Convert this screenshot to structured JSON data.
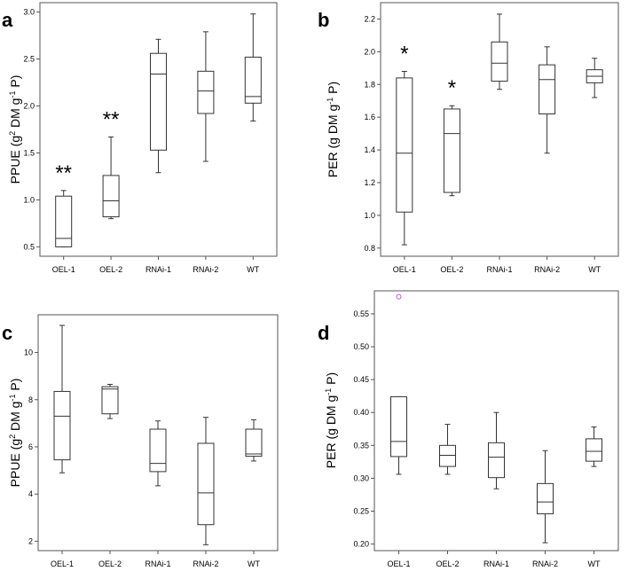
{
  "chart_data": [
    {
      "panel": "a",
      "type": "box",
      "ylabel_main": "PPUE (g",
      "ylabel_sup1": "2",
      "ylabel_mid": " DM g",
      "ylabel_sup2": "-1",
      "ylabel_end": " P)",
      "ylim": [
        0.4,
        3.1
      ],
      "yticks": [
        "0.5",
        "1.0",
        "1.5",
        "2.0",
        "2.5",
        "3.0"
      ],
      "categories": [
        "OEL-1",
        "OEL-2",
        "RNAi-1",
        "RNAi-2",
        "WT"
      ],
      "boxes": [
        {
          "min": 0.5,
          "q1": 0.5,
          "median": 0.59,
          "q3": 1.04,
          "max": 1.1,
          "sig": "**"
        },
        {
          "min": 0.8,
          "q1": 0.82,
          "median": 0.99,
          "q3": 1.26,
          "max": 1.67,
          "sig": "**"
        },
        {
          "min": 1.29,
          "q1": 1.53,
          "median": 2.34,
          "q3": 2.56,
          "max": 2.71,
          "sig": ""
        },
        {
          "min": 1.41,
          "q1": 1.92,
          "median": 2.16,
          "q3": 2.37,
          "max": 2.79,
          "sig": ""
        },
        {
          "min": 1.84,
          "q1": 2.03,
          "median": 2.1,
          "q3": 2.52,
          "max": 2.98,
          "sig": ""
        }
      ],
      "outliers": []
    },
    {
      "panel": "b",
      "type": "box",
      "ylabel_main": "PER (g DM g",
      "ylabel_sup1": "-1",
      "ylabel_mid": " P)",
      "ylabel_sup2": "",
      "ylabel_end": "",
      "ylim": [
        0.75,
        2.3
      ],
      "yticks": [
        "0.8",
        "1.0",
        "1.2",
        "1.4",
        "1.6",
        "1.8",
        "2.0",
        "2.2"
      ],
      "categories": [
        "OEL-1",
        "OEL-2",
        "RNAi-1",
        "RNAi-2",
        "WT"
      ],
      "boxes": [
        {
          "min": 0.82,
          "q1": 1.02,
          "median": 1.38,
          "q3": 1.84,
          "max": 1.88,
          "sig": "*"
        },
        {
          "min": 1.12,
          "q1": 1.14,
          "median": 1.5,
          "q3": 1.65,
          "max": 1.67,
          "sig": "*"
        },
        {
          "min": 1.77,
          "q1": 1.82,
          "median": 1.93,
          "q3": 2.06,
          "max": 2.23,
          "sig": ""
        },
        {
          "min": 1.38,
          "q1": 1.62,
          "median": 1.83,
          "q3": 1.92,
          "max": 2.03,
          "sig": ""
        },
        {
          "min": 1.72,
          "q1": 1.81,
          "median": 1.85,
          "q3": 1.89,
          "max": 1.96,
          "sig": ""
        }
      ],
      "outliers": []
    },
    {
      "panel": "c",
      "type": "box",
      "ylabel_main": "PPUE (g",
      "ylabel_sup1": "2",
      "ylabel_mid": " DM g",
      "ylabel_sup2": "-1",
      "ylabel_end": " P)",
      "ylim": [
        1.6,
        11.6
      ],
      "yticks": [
        "2",
        "4",
        "6",
        "8",
        "10"
      ],
      "categories": [
        "OEL-1",
        "OEL-2",
        "RNAi-1",
        "RNAi-2",
        "WT"
      ],
      "boxes": [
        {
          "min": 4.9,
          "q1": 5.45,
          "median": 7.3,
          "q3": 8.35,
          "max": 11.15,
          "sig": ""
        },
        {
          "min": 7.2,
          "q1": 7.4,
          "median": 8.45,
          "q3": 8.55,
          "max": 8.65,
          "sig": ""
        },
        {
          "min": 4.35,
          "q1": 4.95,
          "median": 5.3,
          "q3": 6.75,
          "max": 7.1,
          "sig": ""
        },
        {
          "min": 1.85,
          "q1": 2.7,
          "median": 4.05,
          "q3": 6.15,
          "max": 7.25,
          "sig": ""
        },
        {
          "min": 5.4,
          "q1": 5.6,
          "median": 5.7,
          "q3": 6.75,
          "max": 7.15,
          "sig": ""
        }
      ],
      "outliers": []
    },
    {
      "panel": "d",
      "type": "box",
      "ylabel_main": "PER (g DM g",
      "ylabel_sup1": "-1",
      "ylabel_mid": " P)",
      "ylabel_sup2": "",
      "ylabel_end": "",
      "ylim": [
        0.19,
        0.585
      ],
      "yticks": [
        "0.20",
        "0.25",
        "0.30",
        "0.35",
        "0.40",
        "0.45",
        "0.50",
        "0.55"
      ],
      "categories": [
        "OEL-1",
        "OEL-2",
        "RNAi-1",
        "RNAi-2",
        "WT"
      ],
      "boxes": [
        {
          "min": 0.306,
          "q1": 0.333,
          "median": 0.356,
          "q3": 0.424,
          "max": 0.424,
          "sig": ""
        },
        {
          "min": 0.306,
          "q1": 0.318,
          "median": 0.335,
          "q3": 0.35,
          "max": 0.382,
          "sig": ""
        },
        {
          "min": 0.284,
          "q1": 0.301,
          "median": 0.332,
          "q3": 0.354,
          "max": 0.4,
          "sig": ""
        },
        {
          "min": 0.202,
          "q1": 0.246,
          "median": 0.264,
          "q3": 0.292,
          "max": 0.342,
          "sig": ""
        },
        {
          "min": 0.318,
          "q1": 0.326,
          "median": 0.341,
          "q3": 0.36,
          "max": 0.378,
          "sig": ""
        }
      ],
      "outliers": [
        {
          "category_index": 0,
          "value": 0.576,
          "color": "#b05fb0"
        }
      ]
    }
  ]
}
